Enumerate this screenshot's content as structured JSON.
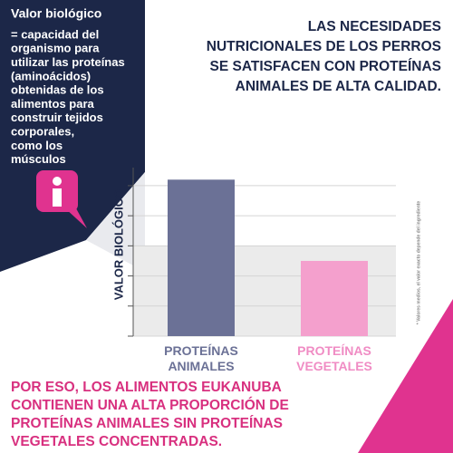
{
  "panel": {
    "heading": "Valor biológico",
    "body": [
      "= capacidad del",
      "organismo para",
      "utilizar las proteínas",
      "(aminoácidos)",
      "obtenidas de los",
      "alimentos para",
      "construir tejidos",
      "corporales,",
      "como los",
      "músculos"
    ]
  },
  "headline": [
    "LAS NECESIDADES",
    "NUTRICIONALES DE LOS PERROS",
    "SE SATISFACEN CON PROTEÍNAS",
    "ANIMALES DE ALTA CALIDAD."
  ],
  "chart_data": {
    "type": "bar",
    "ylabel": "VALOR BIOLÓGICO",
    "categories": [
      "PROTEÍNAS ANIMALES",
      "PROTEÍNAS VEGETALES"
    ],
    "values": [
      5.2,
      2.5
    ],
    "colors": [
      "#6b7196",
      "#f4a0cd"
    ],
    "label_colors": [
      "#6b7196",
      "#f08cc4"
    ],
    "ylim": [
      0,
      5.6
    ],
    "yticks": [
      0,
      1,
      2,
      3,
      4,
      5
    ],
    "grid": true,
    "footnote": "* Valores medios, el valor exacto depende del ingrediente"
  },
  "conclusion": [
    "POR ESO, LOS ALIMENTOS EUKANUBA",
    "CONTIENEN UNA ALTA PROPORCIÓN DE",
    "PROTEÍNAS ANIMALES SIN PROTEÍNAS",
    "VEGETALES CONCENTRADAS."
  ]
}
